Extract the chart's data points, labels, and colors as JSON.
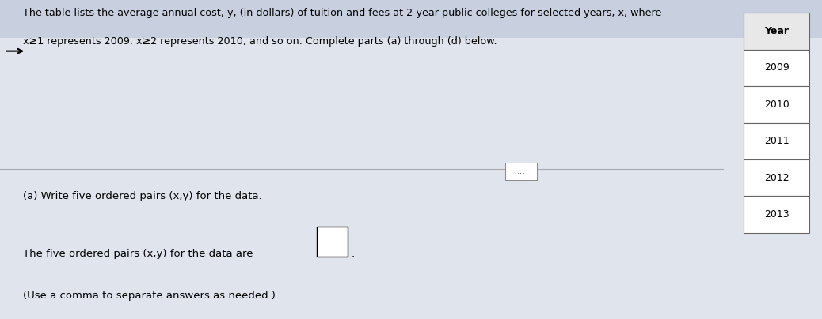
{
  "bg_color": "#c8d0e0",
  "main_bg": "#e0e4ec",
  "description_line1": "The table lists the average annual cost, y, (in dollars) of tuition and fees at 2-year public colleges for selected years, x, where",
  "description_line2": "x≥1 represents 2009, x≥2 represents 2010, and so on. Complete parts (a) through (d) below.",
  "table_header": "Year",
  "table_years": [
    "2009",
    "2010",
    "2011",
    "2012",
    "2013"
  ],
  "part_a_label": "(a) Write five ordered pairs (x,y) for the data.",
  "part_a_answer_prefix": "The five ordered pairs (x,y) for the data are",
  "part_a_note": "(Use a comma to separate answers as needed.)"
}
